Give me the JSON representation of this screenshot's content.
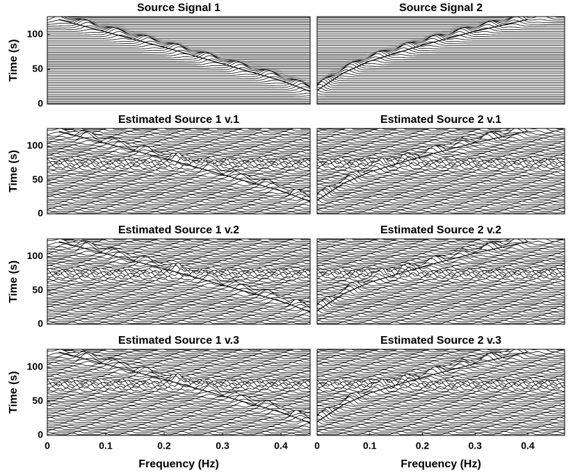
{
  "chart_data": [
    {
      "type": "waterfall",
      "title": "Source Signal 1",
      "ylabel": "Time (s)",
      "xlim": [
        0,
        0.45
      ],
      "ylim": [
        0,
        126
      ],
      "yticks": [
        0,
        50,
        100
      ],
      "x": [
        0.02,
        0.1,
        0.2,
        0.3,
        0.4,
        0.47
      ],
      "values": [
        122,
        104,
        82,
        58,
        34,
        12
      ]
    },
    {
      "type": "waterfall",
      "title": "Source Signal 2",
      "xlim": [
        0,
        0.47
      ],
      "ylim": [
        0,
        126
      ],
      "x": [
        0.0,
        0.05,
        0.1,
        0.2,
        0.3,
        0.4
      ],
      "values": [
        20,
        45,
        62,
        85,
        105,
        122
      ]
    },
    {
      "type": "waterfall",
      "title": "Estimated Source 1 v.1",
      "ylabel": "Time (s)",
      "xlim": [
        0,
        0.45
      ],
      "ylim": [
        0,
        126
      ],
      "yticks": [
        0,
        50,
        100
      ],
      "x": [
        0.02,
        0.1,
        0.2,
        0.3,
        0.4,
        0.47
      ],
      "values": [
        122,
        104,
        82,
        58,
        34,
        12
      ]
    },
    {
      "type": "waterfall",
      "title": "Estimated Source 2 v.1",
      "xlim": [
        0,
        0.47
      ],
      "ylim": [
        0,
        126
      ],
      "x": [
        0.0,
        0.05,
        0.1,
        0.2,
        0.3,
        0.4
      ],
      "values": [
        20,
        45,
        62,
        85,
        105,
        122
      ]
    },
    {
      "type": "waterfall",
      "title": "Estimated Source 1 v.2",
      "ylabel": "Time (s)",
      "xlim": [
        0,
        0.45
      ],
      "ylim": [
        0,
        126
      ],
      "yticks": [
        0,
        50,
        100
      ],
      "x": [
        0.02,
        0.1,
        0.2,
        0.3,
        0.4,
        0.47
      ],
      "values": [
        122,
        104,
        82,
        58,
        34,
        12
      ]
    },
    {
      "type": "waterfall",
      "title": "Estimated Source 2 v.2",
      "xlim": [
        0,
        0.47
      ],
      "ylim": [
        0,
        126
      ],
      "x": [
        0.0,
        0.05,
        0.1,
        0.2,
        0.3,
        0.4
      ],
      "values": [
        20,
        45,
        62,
        85,
        105,
        122
      ]
    },
    {
      "type": "waterfall",
      "title": "Estimated Source 1 v.3",
      "ylabel": "Time (s)",
      "xlabel": "Frequency (Hz)",
      "xlim": [
        0,
        0.45
      ],
      "ylim": [
        0,
        126
      ],
      "yticks": [
        0,
        50,
        100
      ],
      "xticks": [
        0,
        0.1,
        0.2,
        0.3,
        0.4
      ],
      "x": [
        0.02,
        0.1,
        0.2,
        0.3,
        0.4,
        0.47
      ],
      "values": [
        122,
        104,
        82,
        58,
        34,
        12
      ]
    },
    {
      "type": "waterfall",
      "title": "Estimated Source 2 v.3",
      "xlabel": "Frequency (Hz)",
      "xlim": [
        0,
        0.47
      ],
      "ylim": [
        0,
        126
      ],
      "xticks": [
        0,
        0.1,
        0.2,
        0.3,
        0.4
      ],
      "x": [
        0.0,
        0.05,
        0.1,
        0.2,
        0.3,
        0.4
      ],
      "values": [
        20,
        45,
        62,
        85,
        105,
        122
      ]
    }
  ]
}
